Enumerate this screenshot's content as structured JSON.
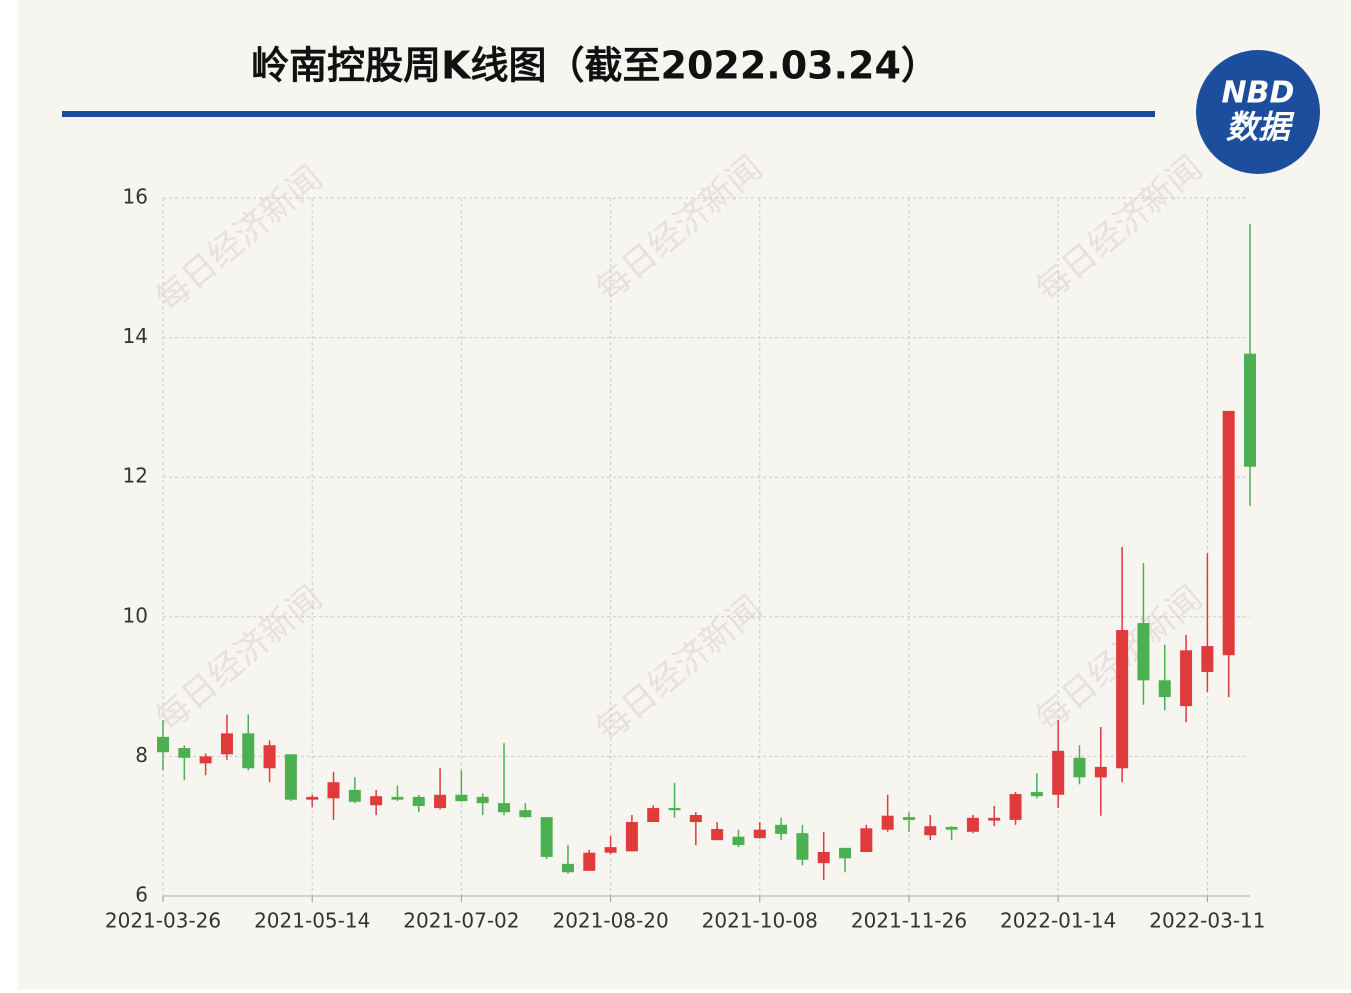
{
  "chart_data": {
    "type": "candlestick",
    "title": "岭南控股周K线图（截至2022.03.24）",
    "brand": {
      "top": "NBD",
      "bottom": "数据"
    },
    "watermark": "每日经济新闻",
    "categories": [
      "2021-03-26",
      null,
      null,
      null,
      null,
      null,
      null,
      "2021-05-14",
      null,
      null,
      null,
      null,
      null,
      null,
      "2021-07-02",
      null,
      null,
      null,
      null,
      null,
      null,
      "2021-08-20",
      null,
      null,
      null,
      null,
      null,
      null,
      "2021-10-08",
      null,
      null,
      null,
      null,
      null,
      null,
      "2021-11-26",
      null,
      null,
      null,
      null,
      null,
      null,
      "2022-01-14",
      null,
      null,
      null,
      null,
      null,
      null,
      "2022-03-11",
      null,
      null
    ],
    "open": [
      8.28,
      8.12,
      7.9,
      8.03,
      8.33,
      7.83,
      8.03,
      7.38,
      7.4,
      7.52,
      7.3,
      7.42,
      7.42,
      7.26,
      7.45,
      7.42,
      7.33,
      7.23,
      7.13,
      6.46,
      6.36,
      6.62,
      6.64,
      7.06,
      7.26,
      7.06,
      6.8,
      6.85,
      6.83,
      7.02,
      6.9,
      6.47,
      6.69,
      6.63,
      6.95,
      7.13,
      6.87,
      6.99,
      6.92,
      7.08,
      7.09,
      7.49,
      7.45,
      7.98,
      7.7,
      7.83,
      9.91,
      9.09,
      8.72,
      9.21,
      9.45,
      13.77
    ],
    "high": [
      8.52,
      8.16,
      8.04,
      8.6,
      8.6,
      8.23,
      8.03,
      7.45,
      7.78,
      7.7,
      7.52,
      7.58,
      7.45,
      7.83,
      7.8,
      7.47,
      8.19,
      7.33,
      7.13,
      6.73,
      6.66,
      6.86,
      7.16,
      7.3,
      7.62,
      7.2,
      7.06,
      6.95,
      7.06,
      7.12,
      7.02,
      6.92,
      6.69,
      7.02,
      7.45,
      7.2,
      7.16,
      7.0,
      7.16,
      7.29,
      7.49,
      7.76,
      8.52,
      8.16,
      8.42,
      11.0,
      10.77,
      9.6,
      9.74,
      10.91,
      12.95,
      15.63
    ],
    "low": [
      7.8,
      7.66,
      7.73,
      7.95,
      7.8,
      7.63,
      7.36,
      7.27,
      7.09,
      7.33,
      7.16,
      7.36,
      7.2,
      7.24,
      7.35,
      7.16,
      7.16,
      7.12,
      6.53,
      6.32,
      6.36,
      6.6,
      6.64,
      7.06,
      7.12,
      6.73,
      6.8,
      6.7,
      6.82,
      6.8,
      6.44,
      6.23,
      6.34,
      6.63,
      6.92,
      6.92,
      6.8,
      6.8,
      6.9,
      7.0,
      7.02,
      7.4,
      7.26,
      7.6,
      7.15,
      7.63,
      8.74,
      8.66,
      8.49,
      8.92,
      8.85,
      11.59
    ],
    "close": [
      8.06,
      7.98,
      8.0,
      8.33,
      7.83,
      8.16,
      7.38,
      7.42,
      7.63,
      7.35,
      7.43,
      7.38,
      7.29,
      7.45,
      7.36,
      7.33,
      7.2,
      7.13,
      6.56,
      6.34,
      6.62,
      6.7,
      7.06,
      7.26,
      7.23,
      7.16,
      6.96,
      6.73,
      6.95,
      6.89,
      6.52,
      6.63,
      6.54,
      6.97,
      7.15,
      7.09,
      7.0,
      6.95,
      7.12,
      7.12,
      7.46,
      7.43,
      8.08,
      7.7,
      7.85,
      9.81,
      9.09,
      8.85,
      9.52,
      9.58,
      12.95,
      12.15
    ],
    "up_color": "#e03a3a",
    "down_color": "#4caf50",
    "ylim": [
      6,
      16
    ],
    "yticks": [
      6,
      8,
      10,
      12,
      14,
      16
    ],
    "grid": true
  }
}
